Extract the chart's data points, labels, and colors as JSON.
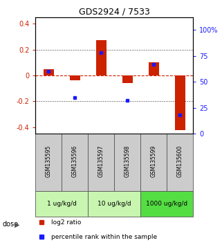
{
  "title": "GDS2924 / 7533",
  "samples": [
    "GSM135595",
    "GSM135596",
    "GSM135597",
    "GSM135598",
    "GSM135599",
    "GSM135600"
  ],
  "log2_ratio": [
    0.05,
    -0.04,
    0.27,
    -0.06,
    0.1,
    -0.42
  ],
  "percentile_rank": [
    60,
    35,
    78,
    32,
    67,
    18
  ],
  "dose_groups": [
    {
      "label": "1 ug/kg/d",
      "start": 0,
      "end": 2
    },
    {
      "label": "10 ug/kg/d",
      "start": 2,
      "end": 4
    },
    {
      "label": "1000 ug/kg/d",
      "start": 4,
      "end": 6
    }
  ],
  "ylim_left": [
    -0.45,
    0.45
  ],
  "ylim_right": [
    0,
    112.5
  ],
  "yticks_left": [
    -0.4,
    -0.2,
    0.0,
    0.2,
    0.4
  ],
  "yticks_right": [
    0,
    25,
    50,
    75,
    100
  ],
  "bar_color_red": "#cc2200",
  "dot_color_blue": "#1a1aff",
  "hline_color": "#cc2200",
  "dotted_color": "#333333",
  "sample_box_color": "#cccccc",
  "dose_color_light": "#c8f5b0",
  "dose_color_mid": "#8ee870",
  "dose_color_dark": "#55dd44",
  "legend_red_label": "log2 ratio",
  "legend_blue_label": "percentile rank within the sample",
  "bar_width": 0.4
}
